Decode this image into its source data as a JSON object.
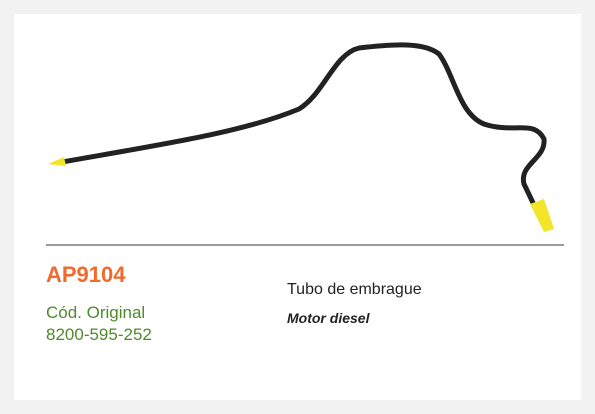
{
  "product": {
    "code": "AP9104",
    "original_label": "Cód. Original",
    "original_code": "8200-595-252",
    "description": "Tubo de embrague",
    "note": "Motor diesel"
  }
}
